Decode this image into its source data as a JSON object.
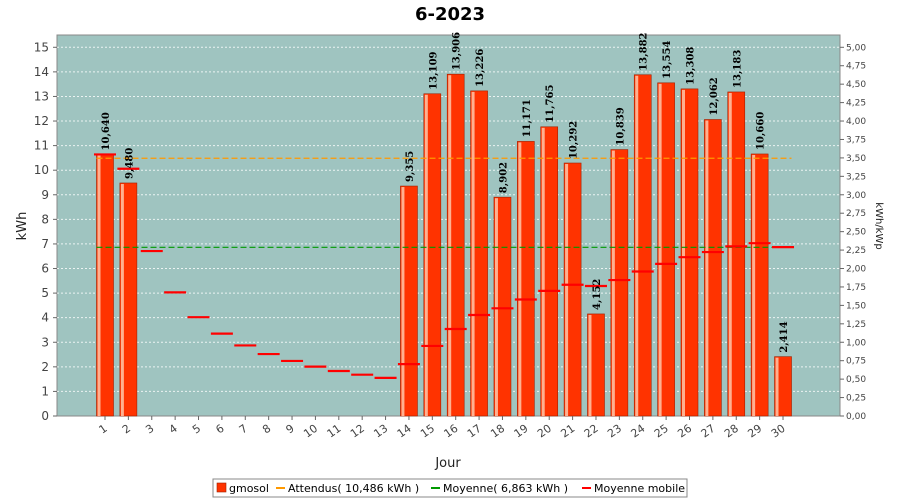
{
  "colors": {
    "plot_bg": "#9fc4c0",
    "bar": "#ff3300",
    "bar_highlight": "#ffb090",
    "expected": "#ff9900",
    "average": "#009900",
    "moving": "#ff0000"
  },
  "chart_data": {
    "type": "bar",
    "title": "6-2023",
    "xlabel": "Jour",
    "ylabel": "kWh",
    "ylabel_right": "kWh/kWp",
    "ylim": [
      0,
      15.5
    ],
    "ylim_right": [
      0,
      5.1667
    ],
    "yticks": [
      "0",
      "1",
      "2",
      "3",
      "4",
      "5",
      "6",
      "7",
      "8",
      "9",
      "10",
      "11",
      "12",
      "13",
      "14",
      "15"
    ],
    "yticks_right": [
      "0,00",
      "0,25",
      "0,50",
      "0,75",
      "1,00",
      "1,25",
      "1,50",
      "1,75",
      "2,00",
      "2,25",
      "2,50",
      "2,75",
      "3,00",
      "3,25",
      "3,50",
      "3,75",
      "4,00",
      "4,25",
      "4,50",
      "4,75",
      "5,00"
    ],
    "categories": [
      "1",
      "2",
      "3",
      "4",
      "5",
      "6",
      "7",
      "8",
      "9",
      "10",
      "11",
      "12",
      "13",
      "14",
      "15",
      "16",
      "17",
      "18",
      "19",
      "20",
      "21",
      "22",
      "23",
      "24",
      "25",
      "26",
      "27",
      "28",
      "29",
      "30"
    ],
    "series": [
      {
        "name": "gmosol",
        "values": [
          10.64,
          9.48,
          0,
          0,
          0,
          0,
          0,
          0,
          0,
          0,
          0,
          0,
          0,
          9.355,
          13.109,
          13.906,
          13.226,
          8.902,
          11.171,
          11.765,
          10.292,
          4.152,
          10.839,
          13.882,
          13.554,
          13.308,
          12.062,
          13.183,
          10.66,
          2.414
        ],
        "labels": [
          "10,640",
          "9,480",
          "",
          "",
          "",
          "",
          "",
          "",
          "",
          "",
          "",
          "",
          "",
          "9,355",
          "13,109",
          "13,906",
          "13,226",
          "8,902",
          "11,171",
          "11,765",
          "10,292",
          "4,152",
          "10,839",
          "13,882",
          "13,554",
          "13,308",
          "12,062",
          "13,183",
          "10,660",
          "2,414"
        ]
      },
      {
        "name": "Attendus( 10,486 kWh )",
        "value": 10.486
      },
      {
        "name": "Moyenne( 6,863 kWh )",
        "value": 6.863
      },
      {
        "name": "Moyenne mobile",
        "values": [
          10.64,
          10.06,
          6.71,
          5.03,
          4.02,
          3.35,
          2.87,
          2.52,
          2.24,
          2.01,
          1.83,
          1.68,
          1.55,
          2.11,
          2.85,
          3.54,
          4.11,
          4.38,
          4.74,
          5.09,
          5.34,
          5.29,
          5.53,
          5.88,
          6.19,
          6.46,
          6.67,
          6.9,
          7.03,
          6.87
        ]
      }
    ],
    "legend_position": "bottom-center",
    "grid": true
  }
}
